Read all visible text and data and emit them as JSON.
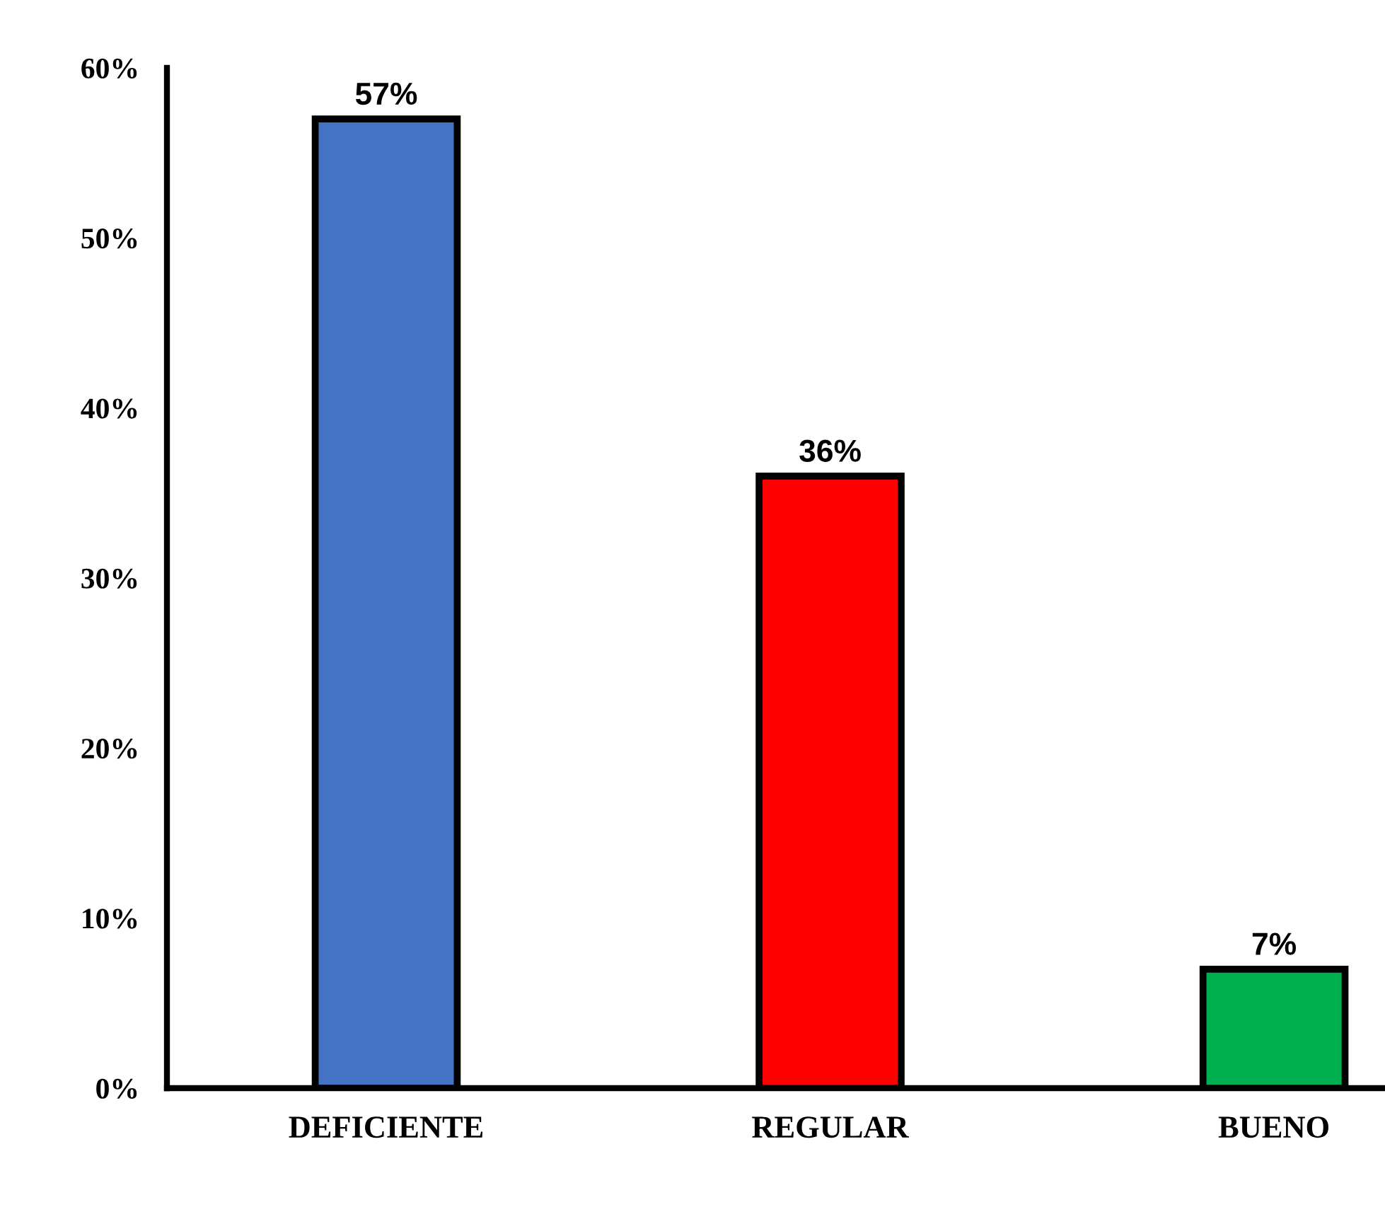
{
  "chart_data": {
    "type": "bar",
    "categories": [
      "DEFICIENTE",
      "REGULAR",
      "BUENO"
    ],
    "values": [
      57,
      36,
      7
    ],
    "colors": [
      "#4472c4",
      "#ff0000",
      "#00b050"
    ],
    "value_labels": [
      "57%",
      "36%",
      "7%"
    ],
    "ylim": [
      0,
      60
    ],
    "yticks": [
      {
        "value": 0,
        "label": "0%"
      },
      {
        "value": 10,
        "label": "10%"
      },
      {
        "value": 20,
        "label": "20%"
      },
      {
        "value": 30,
        "label": "30%"
      },
      {
        "value": 40,
        "label": "40%"
      },
      {
        "value": 50,
        "label": "50%"
      },
      {
        "value": 60,
        "label": "60%"
      }
    ],
    "grid": false,
    "legend": false
  }
}
